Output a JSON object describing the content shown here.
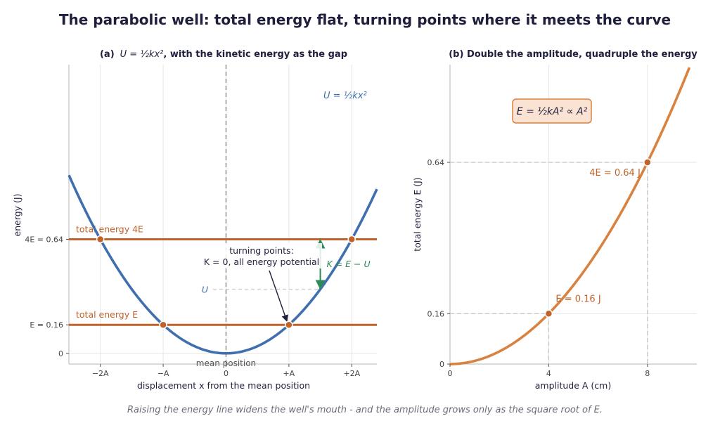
{
  "figure": {
    "title": "The parabolic well: total energy flat, turning points where it meets the curve",
    "caption": "Raising the energy line widens the well's mouth - and the amplitude grows only as the square root of E."
  },
  "colors": {
    "well_curve": "#3f6fae",
    "energy_line": "#c0622a",
    "energy_curve": "#d9823f",
    "kinetic_arrow": "#2e8b57",
    "ink": "#1f1f3d",
    "grid": "#e6e6e6"
  },
  "chart_data": [
    {
      "type": "line",
      "panel": "a",
      "title_prefix": "(a)",
      "title_math": "U = ½kx²",
      "title_suffix": ", with the kinetic energy as the gap",
      "xlabel": "displacement x from the mean position",
      "ylabel": "energy (J)",
      "xlim": [
        -2.5,
        2.4
      ],
      "ylim": [
        -0.06,
        1.62
      ],
      "xticks": [
        {
          "v": -2,
          "label": "−2A"
        },
        {
          "v": -1,
          "label": "−A"
        },
        {
          "v": 0,
          "label": "0"
        },
        {
          "v": 1,
          "label": "+A"
        },
        {
          "v": 2,
          "label": "+2A"
        }
      ],
      "yticks": [
        {
          "v": 0,
          "label": "0"
        },
        {
          "v": 0.16,
          "label": "E = 0.16"
        },
        {
          "v": 0.64,
          "label": "4E = 0.64"
        }
      ],
      "grid": true,
      "well": {
        "k_over_2": 0.16,
        "label": "U = ½kx²"
      },
      "energy_levels": [
        {
          "y": 0.16,
          "label": "total energy E",
          "turning_points": [
            -1,
            1
          ]
        },
        {
          "y": 0.64,
          "label": "total energy 4E",
          "turning_points": [
            -2,
            2
          ]
        }
      ],
      "mean_line": {
        "x": 0,
        "label": "mean position"
      },
      "kinetic_gap": {
        "x": 1.5,
        "u": 0.36,
        "e": 0.64,
        "label": "K = E − U",
        "u_label": "U"
      },
      "turning_note": {
        "line1": "turning points:",
        "line2": "K = 0, all energy potential",
        "target": [
          1,
          0.16
        ]
      }
    },
    {
      "type": "line",
      "panel": "b",
      "title": "(b)  Double the amplitude, quadruple the energy",
      "xlabel": "amplitude A (cm)",
      "ylabel": "total energy E (J)",
      "xlim": [
        0,
        10
      ],
      "ylim": [
        0,
        0.95
      ],
      "xticks": [
        {
          "v": 0,
          "label": "0"
        },
        {
          "v": 4,
          "label": "4"
        },
        {
          "v": 8,
          "label": "8"
        }
      ],
      "yticks": [
        {
          "v": 0,
          "label": "0"
        },
        {
          "v": 0.16,
          "label": "0.16"
        },
        {
          "v": 0.64,
          "label": "0.64"
        }
      ],
      "grid": true,
      "curve": {
        "coef": 0.01,
        "x_max": 10
      },
      "points": [
        {
          "x": 4,
          "y": 0.16,
          "label": "E = 0.16 J"
        },
        {
          "x": 8,
          "y": 0.64,
          "label": "4E = 0.64 J"
        }
      ],
      "formula_box": "E = ½kA² ∝ A²"
    }
  ]
}
